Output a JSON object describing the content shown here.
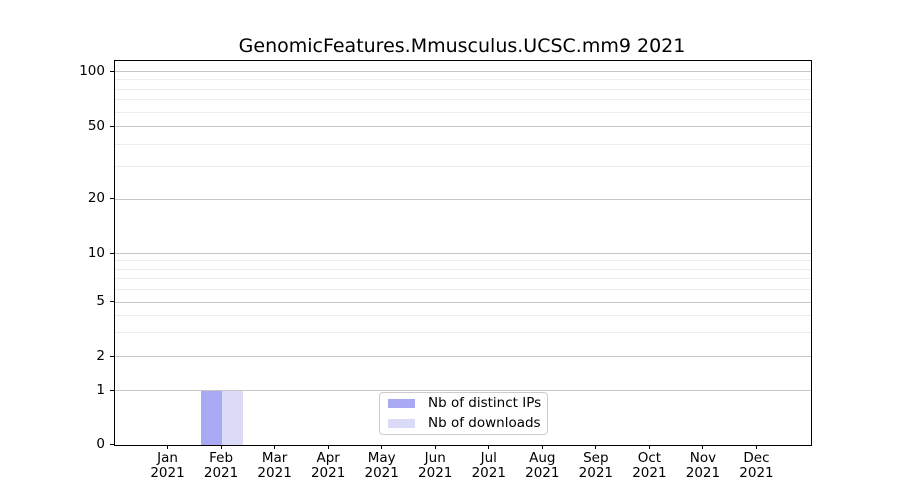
{
  "title": "GenomicFeatures.Mmusculus.UCSC.mm9 2021",
  "colors": {
    "distinct_ips": "#a9a9f3",
    "downloads": "#dbdbf8",
    "major_grid": "#c7c7c7",
    "minor_grid": "#ececec",
    "axis": "#000000",
    "legend_border": "#cccccc"
  },
  "legend": {
    "items": [
      {
        "label": "Nb of distinct IPs",
        "color_key": "distinct_ips"
      },
      {
        "label": "Nb of downloads",
        "color_key": "downloads"
      }
    ]
  },
  "y_axis": {
    "tick_labels": [
      "100",
      "50",
      "20",
      "10",
      "5",
      "2",
      "1",
      "0"
    ],
    "tick_values": [
      100,
      50,
      20,
      10,
      5,
      2,
      1,
      0
    ],
    "minor_tick_values": [
      90,
      80,
      70,
      60,
      40,
      30,
      9,
      8,
      7,
      6,
      4,
      3
    ]
  },
  "x_axis": {
    "year": "2021",
    "months": [
      "Jan",
      "Feb",
      "Mar",
      "Apr",
      "May",
      "Jun",
      "Jul",
      "Aug",
      "Sep",
      "Oct",
      "Nov",
      "Dec"
    ]
  },
  "chart_data": {
    "type": "bar",
    "title": "GenomicFeatures.Mmusculus.UCSC.mm9 2021",
    "categories": [
      "Jan 2021",
      "Feb 2021",
      "Mar 2021",
      "Apr 2021",
      "May 2021",
      "Jun 2021",
      "Jul 2021",
      "Aug 2021",
      "Sep 2021",
      "Oct 2021",
      "Nov 2021",
      "Dec 2021"
    ],
    "series": [
      {
        "name": "Nb of distinct IPs",
        "color": "#a9a9f3",
        "values": [
          0,
          1,
          0,
          0,
          0,
          0,
          0,
          0,
          0,
          0,
          0,
          0
        ]
      },
      {
        "name": "Nb of downloads",
        "color": "#dbdbf8",
        "values": [
          0,
          1,
          0,
          0,
          0,
          0,
          0,
          0,
          0,
          0,
          0,
          0
        ]
      }
    ],
    "xlabel": "",
    "ylabel": "",
    "yticks": [
      0,
      1,
      2,
      5,
      10,
      20,
      50,
      100
    ],
    "ylim": [
      0,
      110
    ],
    "scale": "log-like (symlog)",
    "grid": "horizontal, major + minor",
    "legend_position": "lower center"
  }
}
